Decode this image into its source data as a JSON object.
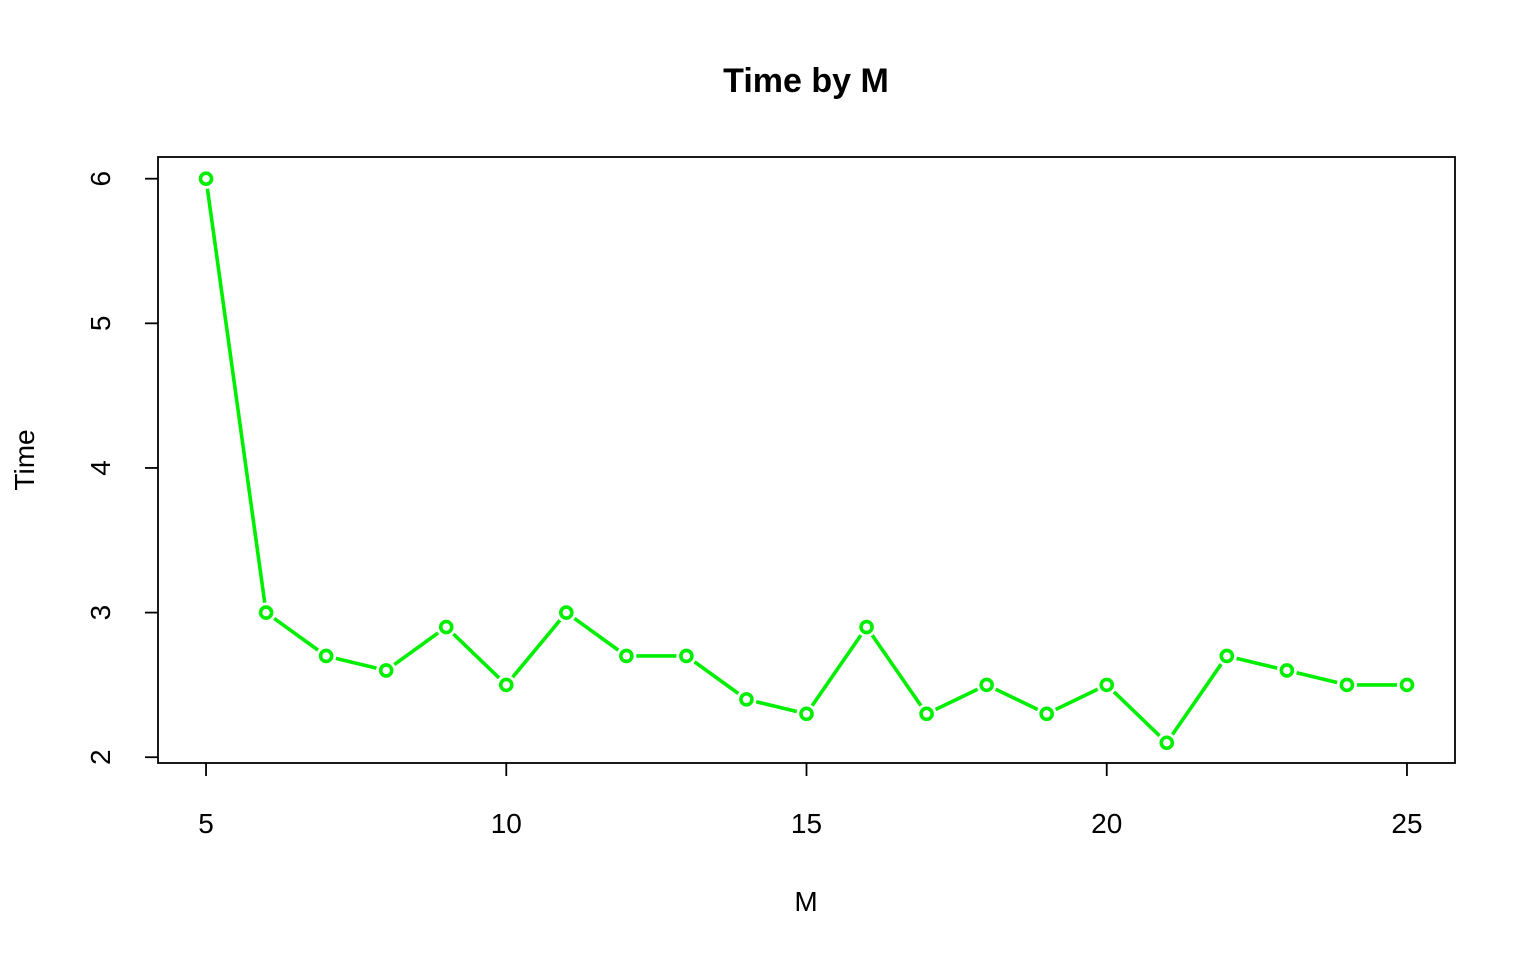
{
  "chart_data": {
    "type": "line",
    "title": "Time by M",
    "xlabel": "M",
    "ylabel": "Time",
    "x": [
      5,
      6,
      7,
      8,
      9,
      10,
      11,
      12,
      13,
      14,
      15,
      16,
      17,
      18,
      19,
      20,
      21,
      22,
      23,
      24,
      25
    ],
    "series": [
      {
        "values": [
          6.0,
          3.0,
          2.7,
          2.6,
          2.9,
          2.5,
          3.0,
          2.7,
          2.7,
          2.4,
          2.3,
          2.9,
          2.3,
          2.5,
          2.3,
          2.5,
          2.1,
          2.7,
          2.6,
          2.5,
          2.5
        ],
        "color": "#00ee00",
        "marker": "open-circle"
      }
    ],
    "xticks": [
      "5",
      "10",
      "15",
      "20",
      "25"
    ],
    "yticks": [
      "2",
      "3",
      "4",
      "5",
      "6"
    ],
    "xlim": [
      4.2,
      25.8
    ],
    "ylim": [
      1.96,
      6.15
    ],
    "grid": false,
    "legend": "none"
  }
}
